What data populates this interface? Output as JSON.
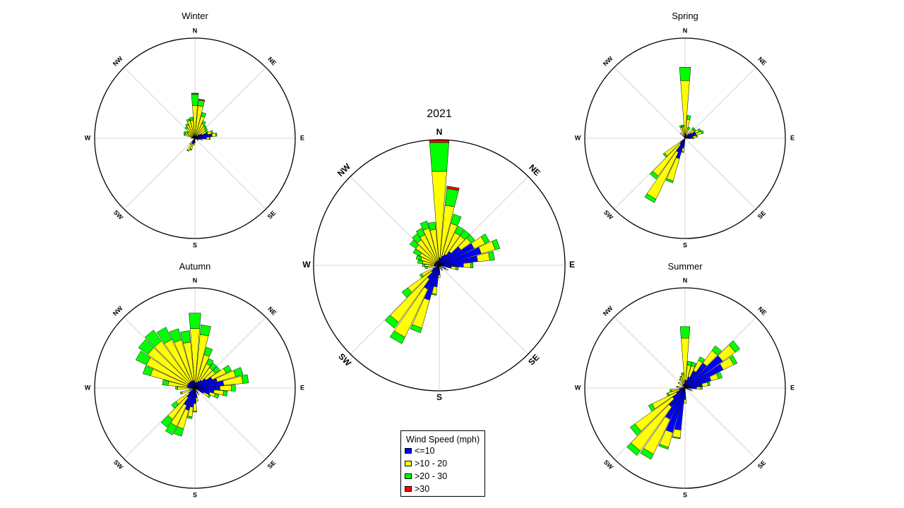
{
  "legend": {
    "title": "Wind Speed (mph)",
    "items": [
      {
        "label": "<=10",
        "color": "#0000ff"
      },
      {
        "label": ">10 - 20",
        "color": "#ffff00"
      },
      {
        "label": ">20 - 30",
        "color": "#00ff00"
      },
      {
        "label": ">30",
        "color": "#ff0000"
      }
    ]
  },
  "directions": [
    "N",
    "NE",
    "E",
    "SE",
    "S",
    "SW",
    "W",
    "NW"
  ],
  "chart_data": [
    {
      "type": "wind-rose",
      "title": "Winter",
      "bins": [
        {
          "dir": 0,
          "v": [
            1,
            16,
            6,
            0.5
          ]
        },
        {
          "dir": 10,
          "v": [
            1,
            16,
            3,
            0.5
          ]
        },
        {
          "dir": 20,
          "v": [
            1,
            11,
            2,
            0
          ]
        },
        {
          "dir": 30,
          "v": [
            1.5,
            7,
            1.5,
            0
          ]
        },
        {
          "dir": 40,
          "v": [
            1.5,
            6,
            1,
            0
          ]
        },
        {
          "dir": 50,
          "v": [
            3,
            4,
            1,
            0
          ]
        },
        {
          "dir": 60,
          "v": [
            4,
            2.5,
            1,
            0
          ]
        },
        {
          "dir": 70,
          "v": [
            7,
            2,
            0.8,
            0
          ]
        },
        {
          "dir": 80,
          "v": [
            9,
            2,
            0.5,
            0
          ]
        },
        {
          "dir": 90,
          "v": [
            6,
            1.5,
            0.5,
            0
          ]
        },
        {
          "dir": 100,
          "v": [
            3,
            1,
            0,
            0
          ]
        },
        {
          "dir": 120,
          "v": [
            1.5,
            0.5,
            0,
            0
          ]
        },
        {
          "dir": 180,
          "v": [
            2,
            0.5,
            0,
            0
          ]
        },
        {
          "dir": 190,
          "v": [
            2.5,
            1,
            0,
            0
          ]
        },
        {
          "dir": 200,
          "v": [
            3,
            3,
            0.5,
            0
          ]
        },
        {
          "dir": 210,
          "v": [
            3,
            4,
            0.5,
            0
          ]
        },
        {
          "dir": 220,
          "v": [
            2,
            2,
            0,
            0
          ]
        },
        {
          "dir": 270,
          "v": [
            1,
            1,
            0,
            0
          ]
        },
        {
          "dir": 290,
          "v": [
            1.5,
            4,
            0.5,
            0
          ]
        },
        {
          "dir": 300,
          "v": [
            1.5,
            4,
            1,
            0
          ]
        },
        {
          "dir": 310,
          "v": [
            1.5,
            3,
            1,
            0
          ]
        },
        {
          "dir": 320,
          "v": [
            1.5,
            5,
            1,
            0
          ]
        },
        {
          "dir": 330,
          "v": [
            1.5,
            6,
            1,
            0
          ]
        },
        {
          "dir": 340,
          "v": [
            1.5,
            8,
            1,
            0
          ]
        },
        {
          "dir": 350,
          "v": [
            1.5,
            8,
            1.5,
            0
          ]
        }
      ]
    },
    {
      "type": "wind-rose",
      "title": "Spring",
      "bins": [
        {
          "dir": 0,
          "v": [
            2,
            28,
            7,
            0
          ]
        },
        {
          "dir": 10,
          "v": [
            2,
            8,
            2,
            0
          ]
        },
        {
          "dir": 20,
          "v": [
            2,
            3,
            1,
            0
          ]
        },
        {
          "dir": 40,
          "v": [
            3,
            3,
            1,
            0
          ]
        },
        {
          "dir": 50,
          "v": [
            4,
            2,
            1,
            0
          ]
        },
        {
          "dir": 60,
          "v": [
            6,
            2,
            1,
            0
          ]
        },
        {
          "dir": 70,
          "v": [
            6,
            3,
            1,
            0
          ]
        },
        {
          "dir": 80,
          "v": [
            4,
            2,
            0.5,
            0
          ]
        },
        {
          "dir": 90,
          "v": [
            3,
            1,
            0.5,
            0
          ]
        },
        {
          "dir": 190,
          "v": [
            5,
            2,
            0.5,
            0
          ]
        },
        {
          "dir": 200,
          "v": [
            11,
            12,
            1,
            0
          ]
        },
        {
          "dir": 210,
          "v": [
            8,
            27,
            2,
            0
          ]
        },
        {
          "dir": 220,
          "v": [
            4,
            20,
            2,
            0
          ]
        },
        {
          "dir": 230,
          "v": [
            3,
            10,
            1,
            0
          ]
        },
        {
          "dir": 320,
          "v": [
            1,
            2,
            0.5,
            0
          ]
        },
        {
          "dir": 340,
          "v": [
            1,
            5,
            1,
            0
          ]
        },
        {
          "dir": 350,
          "v": [
            1,
            5,
            1,
            0
          ]
        }
      ]
    },
    {
      "type": "wind-rose",
      "title": "2021",
      "bins": [
        {
          "dir": 0,
          "v": [
            3,
            36,
            12,
            1
          ]
        },
        {
          "dir": 10,
          "v": [
            3,
            22,
            7,
            1
          ]
        },
        {
          "dir": 20,
          "v": [
            4,
            14,
            4,
            0
          ]
        },
        {
          "dir": 30,
          "v": [
            5,
            10,
            3,
            0
          ]
        },
        {
          "dir": 40,
          "v": [
            7,
            8,
            3,
            0
          ]
        },
        {
          "dir": 50,
          "v": [
            11,
            5,
            2,
            0
          ]
        },
        {
          "dir": 60,
          "v": [
            16,
            5,
            2,
            0
          ]
        },
        {
          "dir": 70,
          "v": [
            18,
            6,
            2,
            0
          ]
        },
        {
          "dir": 80,
          "v": [
            16,
            5,
            2,
            0
          ]
        },
        {
          "dir": 90,
          "v": [
            10,
            3,
            1,
            0
          ]
        },
        {
          "dir": 100,
          "v": [
            5,
            2,
            1,
            0
          ]
        },
        {
          "dir": 120,
          "v": [
            3,
            1,
            0,
            0
          ]
        },
        {
          "dir": 150,
          "v": [
            2,
            0.5,
            0,
            0
          ]
        },
        {
          "dir": 180,
          "v": [
            4,
            1,
            0,
            0
          ]
        },
        {
          "dir": 190,
          "v": [
            9,
            3,
            0.5,
            0
          ]
        },
        {
          "dir": 200,
          "v": [
            15,
            12,
            2,
            0
          ]
        },
        {
          "dir": 210,
          "v": [
            11,
            22,
            3,
            0
          ]
        },
        {
          "dir": 220,
          "v": [
            7,
            22,
            3,
            0
          ]
        },
        {
          "dir": 230,
          "v": [
            4,
            12,
            3,
            0
          ]
        },
        {
          "dir": 240,
          "v": [
            3,
            5,
            1,
            0
          ]
        },
        {
          "dir": 260,
          "v": [
            2,
            3,
            1,
            0
          ]
        },
        {
          "dir": 270,
          "v": [
            2,
            4,
            1,
            0
          ]
        },
        {
          "dir": 280,
          "v": [
            2,
            5,
            2,
            0
          ]
        },
        {
          "dir": 290,
          "v": [
            2,
            6,
            2,
            0
          ]
        },
        {
          "dir": 300,
          "v": [
            2,
            7,
            3,
            0
          ]
        },
        {
          "dir": 310,
          "v": [
            2,
            10,
            3,
            0
          ]
        },
        {
          "dir": 320,
          "v": [
            2,
            11,
            3,
            0
          ]
        },
        {
          "dir": 330,
          "v": [
            2,
            12,
            3,
            0
          ]
        },
        {
          "dir": 340,
          "v": [
            2,
            14,
            3,
            0
          ]
        },
        {
          "dir": 350,
          "v": [
            2,
            13,
            3,
            0
          ]
        }
      ]
    },
    {
      "type": "wind-rose",
      "title": "Autumn",
      "bins": [
        {
          "dir": 0,
          "v": [
            3,
            28,
            8,
            0
          ]
        },
        {
          "dir": 10,
          "v": [
            3,
            25,
            5,
            0
          ]
        },
        {
          "dir": 20,
          "v": [
            3,
            15,
            4,
            0
          ]
        },
        {
          "dir": 30,
          "v": [
            4,
            10,
            3,
            0
          ]
        },
        {
          "dir": 40,
          "v": [
            5,
            8,
            3,
            0
          ]
        },
        {
          "dir": 50,
          "v": [
            7,
            6,
            3,
            0
          ]
        },
        {
          "dir": 60,
          "v": [
            10,
            8,
            3,
            0
          ]
        },
        {
          "dir": 70,
          "v": [
            12,
            10,
            4,
            0
          ]
        },
        {
          "dir": 80,
          "v": [
            15,
            10,
            3,
            0
          ]
        },
        {
          "dir": 90,
          "v": [
            13,
            6,
            2,
            0
          ]
        },
        {
          "dir": 100,
          "v": [
            10,
            5,
            2,
            0
          ]
        },
        {
          "dir": 110,
          "v": [
            8,
            3,
            2,
            0
          ]
        },
        {
          "dir": 120,
          "v": [
            5,
            3,
            1,
            0
          ]
        },
        {
          "dir": 150,
          "v": [
            3,
            1,
            0,
            0
          ]
        },
        {
          "dir": 170,
          "v": [
            5,
            2,
            0,
            0
          ]
        },
        {
          "dir": 180,
          "v": [
            8,
            4,
            0.5,
            0
          ]
        },
        {
          "dir": 190,
          "v": [
            10,
            5,
            1,
            0
          ]
        },
        {
          "dir": 200,
          "v": [
            12,
            10,
            4,
            0
          ]
        },
        {
          "dir": 210,
          "v": [
            10,
            12,
            5,
            0
          ]
        },
        {
          "dir": 220,
          "v": [
            6,
            14,
            5,
            0
          ]
        },
        {
          "dir": 230,
          "v": [
            4,
            8,
            3,
            0
          ]
        },
        {
          "dir": 250,
          "v": [
            3,
            4,
            1,
            0
          ]
        },
        {
          "dir": 270,
          "v": [
            3,
            6,
            1,
            0
          ]
        },
        {
          "dir": 280,
          "v": [
            4,
            10,
            3,
            0
          ]
        },
        {
          "dir": 290,
          "v": [
            4,
            20,
            4,
            0
          ]
        },
        {
          "dir": 300,
          "v": [
            4,
            24,
            6,
            0
          ]
        },
        {
          "dir": 310,
          "v": [
            4,
            26,
            6,
            0
          ]
        },
        {
          "dir": 320,
          "v": [
            4,
            26,
            7,
            0
          ]
        },
        {
          "dir": 330,
          "v": [
            4,
            24,
            7,
            0
          ]
        },
        {
          "dir": 340,
          "v": [
            4,
            22,
            6,
            0
          ]
        },
        {
          "dir": 350,
          "v": [
            4,
            20,
            6,
            0
          ]
        }
      ]
    },
    {
      "type": "wind-rose",
      "title": "Summer",
      "bins": [
        {
          "dir": 0,
          "v": [
            4,
            22,
            6,
            0
          ]
        },
        {
          "dir": 10,
          "v": [
            4,
            8,
            2,
            0
          ]
        },
        {
          "dir": 20,
          "v": [
            6,
            6,
            2,
            0
          ]
        },
        {
          "dir": 30,
          "v": [
            10,
            6,
            2,
            0
          ]
        },
        {
          "dir": 40,
          "v": [
            16,
            8,
            3,
            0
          ]
        },
        {
          "dir": 50,
          "v": [
            24,
            8,
            3,
            0
          ]
        },
        {
          "dir": 60,
          "v": [
            22,
            6,
            2,
            0
          ]
        },
        {
          "dir": 70,
          "v": [
            14,
            4,
            2,
            0
          ]
        },
        {
          "dir": 80,
          "v": [
            9,
            3,
            1,
            0
          ]
        },
        {
          "dir": 90,
          "v": [
            6,
            2,
            1,
            0
          ]
        },
        {
          "dir": 110,
          "v": [
            3,
            1,
            0,
            0
          ]
        },
        {
          "dir": 180,
          "v": [
            6,
            2,
            0,
            0
          ]
        },
        {
          "dir": 190,
          "v": [
            22,
            4,
            0.5,
            0
          ]
        },
        {
          "dir": 200,
          "v": [
            24,
            8,
            1,
            0
          ]
        },
        {
          "dir": 210,
          "v": [
            18,
            20,
            3,
            0
          ]
        },
        {
          "dir": 220,
          "v": [
            12,
            28,
            3,
            0
          ]
        },
        {
          "dir": 230,
          "v": [
            8,
            24,
            3,
            0
          ]
        },
        {
          "dir": 240,
          "v": [
            5,
            14,
            2,
            0
          ]
        },
        {
          "dir": 250,
          "v": [
            3,
            6,
            1,
            0
          ]
        },
        {
          "dir": 260,
          "v": [
            3,
            4,
            1,
            0
          ]
        },
        {
          "dir": 280,
          "v": [
            2,
            2,
            0.5,
            0
          ]
        },
        {
          "dir": 310,
          "v": [
            2,
            2,
            0.5,
            0
          ]
        },
        {
          "dir": 330,
          "v": [
            2,
            3,
            0.5,
            0
          ]
        },
        {
          "dir": 340,
          "v": [
            2,
            4,
            0.5,
            0
          ]
        },
        {
          "dir": 350,
          "v": [
            2,
            5,
            1,
            0
          ]
        }
      ]
    }
  ]
}
